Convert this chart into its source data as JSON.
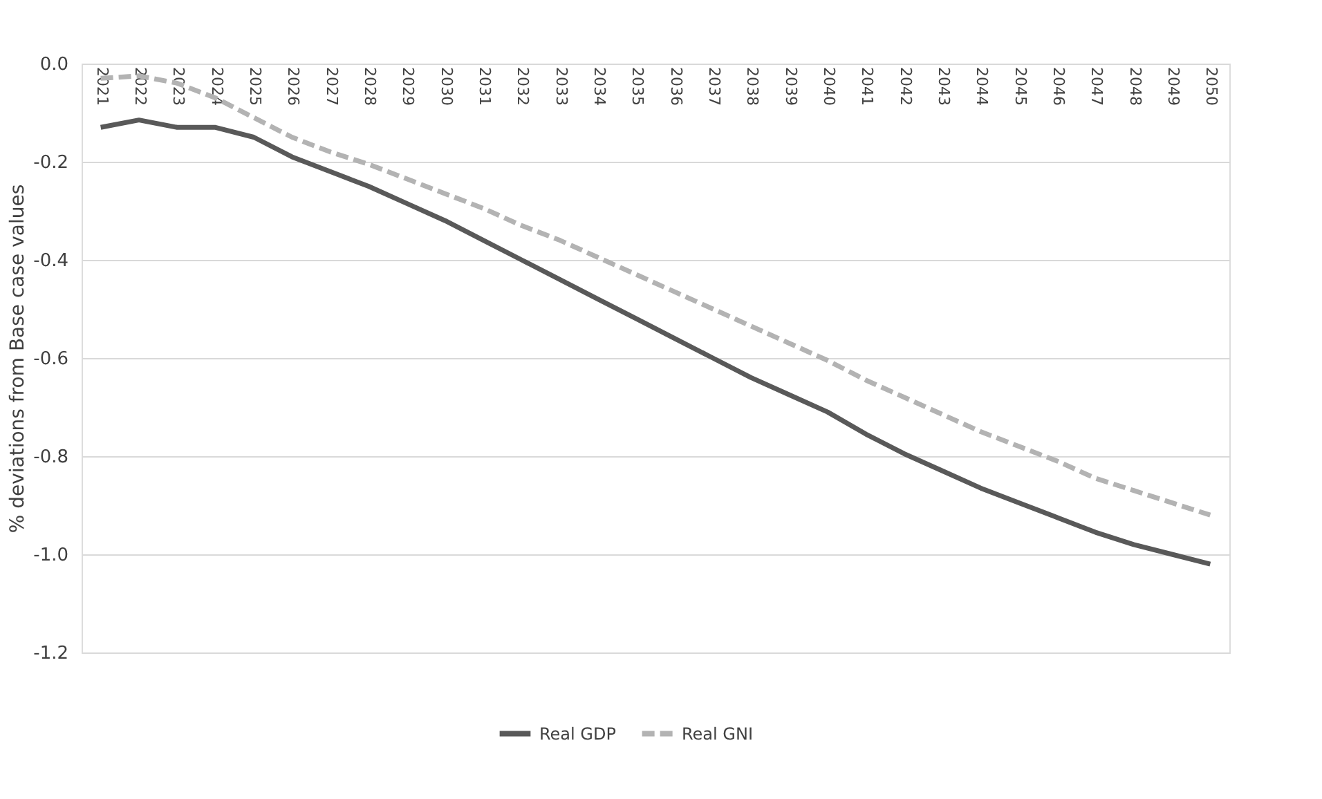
{
  "chart_data": {
    "type": "line",
    "ylabel": "% deviations from Base case values",
    "categories": [
      "2021",
      "2022",
      "2023",
      "2024",
      "2025",
      "2026",
      "2027",
      "2028",
      "2029",
      "2030",
      "2031",
      "2032",
      "2033",
      "2034",
      "2035",
      "2036",
      "2037",
      "2038",
      "2039",
      "2040",
      "2041",
      "2042",
      "2043",
      "2044",
      "2045",
      "2046",
      "2047",
      "2048",
      "2049",
      "2050"
    ],
    "series": [
      {
        "name": "Real GDP",
        "color": "#595959",
        "line_style": "solid",
        "values": [
          -0.13,
          -0.115,
          -0.13,
          -0.13,
          -0.15,
          -0.19,
          -0.22,
          -0.25,
          -0.285,
          -0.32,
          -0.36,
          -0.4,
          -0.44,
          -0.48,
          -0.52,
          -0.56,
          -0.6,
          -0.64,
          -0.675,
          -0.71,
          -0.755,
          -0.795,
          -0.83,
          -0.865,
          -0.895,
          -0.925,
          -0.955,
          -0.98,
          -1.0,
          -1.02
        ]
      },
      {
        "name": "Real GNI",
        "color": "#b3b3b3",
        "line_style": "dashed",
        "values": [
          -0.03,
          -0.025,
          -0.04,
          -0.07,
          -0.11,
          -0.15,
          -0.18,
          -0.205,
          -0.235,
          -0.265,
          -0.295,
          -0.33,
          -0.36,
          -0.395,
          -0.43,
          -0.465,
          -0.5,
          -0.535,
          -0.57,
          -0.605,
          -0.645,
          -0.68,
          -0.715,
          -0.75,
          -0.78,
          -0.81,
          -0.845,
          -0.87,
          -0.895,
          -0.92
        ]
      }
    ],
    "ylim": [
      -1.2,
      0.0
    ],
    "yticks": [
      {
        "value": -1.2,
        "label": "-1.2"
      },
      {
        "value": -1.0,
        "label": "-1.0"
      },
      {
        "value": -0.8,
        "label": "-0.8"
      },
      {
        "value": -0.6,
        "label": "-0.6"
      },
      {
        "value": -0.4,
        "label": "-0.4"
      },
      {
        "value": -0.2,
        "label": "-0.2"
      },
      {
        "value": 0.0,
        "label": "0.0"
      }
    ],
    "grid": "y",
    "legend": "bottom",
    "marker": "none"
  }
}
